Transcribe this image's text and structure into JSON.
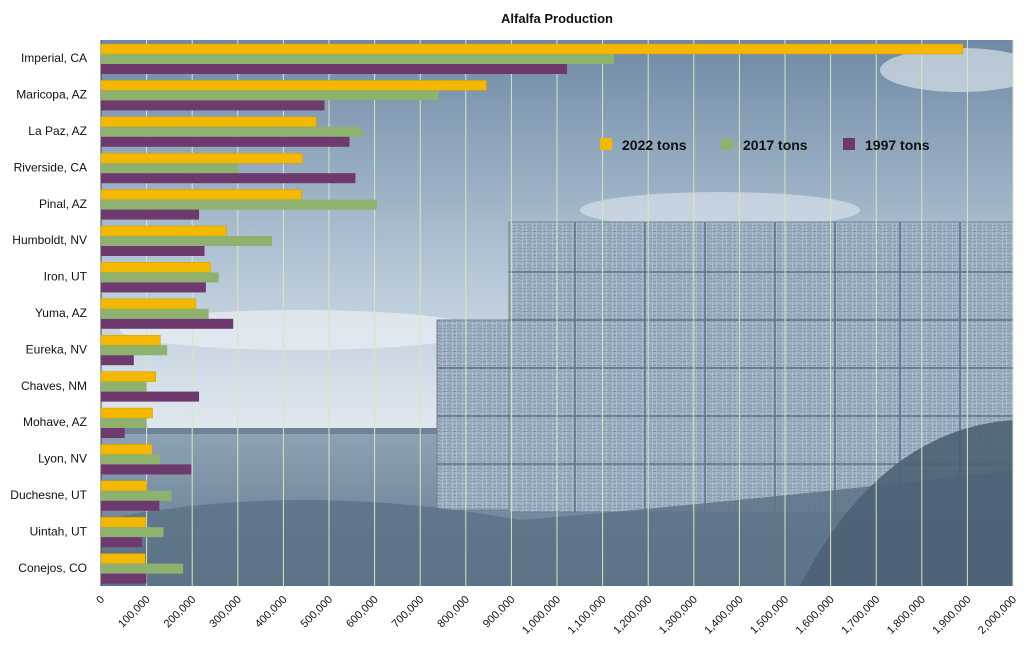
{
  "chart_data": {
    "type": "bar",
    "orientation": "horizontal",
    "title": "Alfalfa Production",
    "xlabel": "",
    "ylabel": "",
    "xlim": [
      0,
      2000000
    ],
    "grid": true,
    "legend_position": "top-right",
    "background": "photo of stacked hay bales in a field (blue-tinted)",
    "categories": [
      "Imperial, CA",
      "Maricopa, AZ",
      "La Paz, AZ",
      "Riverside, CA",
      "Pinal, AZ",
      "Humboldt, NV",
      "Iron, UT",
      "Yuma, AZ",
      "Eureka, NV",
      "Chaves, NM",
      "Mohave, AZ",
      "Lyon, NV",
      "Duchesne, UT",
      "Uintah, UT",
      "Conejos, CO"
    ],
    "x_ticks": [
      "0",
      "100,000",
      "200,000",
      "300,000",
      "400,000",
      "500,000",
      "600,000",
      "700,000",
      "800,000",
      "900,000",
      "1,000,000",
      "1,100,000",
      "1,200,000",
      "1,300,000",
      "1,400,000",
      "1,500,000",
      "1,600,000",
      "1,700,000",
      "1,800,000",
      "1,900,000",
      "2,000,000"
    ],
    "series": [
      {
        "name": "2022 tons",
        "color": "#f5b800",
        "values": [
          1890000,
          845000,
          472000,
          442000,
          440000,
          275000,
          240000,
          208000,
          130000,
          120000,
          113000,
          112000,
          100000,
          98000,
          97000
        ]
      },
      {
        "name": "2017 tons",
        "color": "#8fb16e",
        "values": [
          1125000,
          740000,
          572000,
          302000,
          605000,
          375000,
          258000,
          236000,
          145000,
          100000,
          100000,
          130000,
          155000,
          137000,
          180000
        ]
      },
      {
        "name": "1997 tons",
        "color": "#6e3a6e",
        "values": [
          1022000,
          490000,
          545000,
          558000,
          215000,
          227000,
          230000,
          290000,
          72000,
          215000,
          52000,
          198000,
          128000,
          90000,
          100000
        ]
      }
    ]
  }
}
